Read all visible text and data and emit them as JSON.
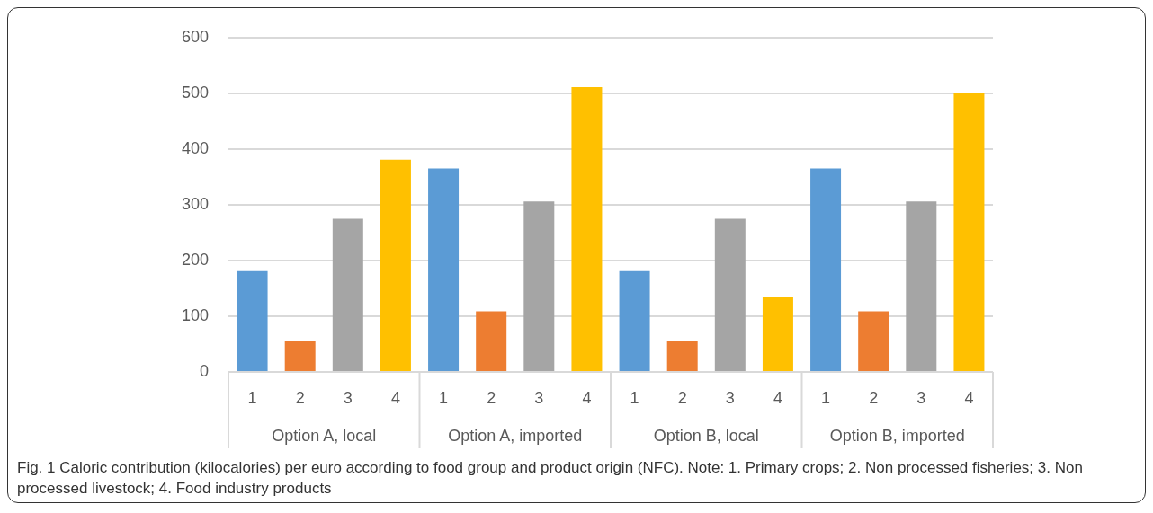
{
  "chart_data": {
    "type": "bar",
    "categories": [
      "Option A, local",
      "Option A, imported",
      "Option B, local",
      "Option B, imported"
    ],
    "series": [
      {
        "name": "1",
        "color": "#5b9bd5",
        "values": [
          181,
          365,
          181,
          365
        ]
      },
      {
        "name": "2",
        "color": "#ed7d31",
        "values": [
          56,
          109,
          56,
          109
        ]
      },
      {
        "name": "3",
        "color": "#a5a5a5",
        "values": [
          275,
          306,
          275,
          306
        ]
      },
      {
        "name": "4",
        "color": "#ffc000",
        "values": [
          381,
          511,
          134,
          500
        ]
      }
    ],
    "ylim": [
      0,
      600
    ],
    "yticks": [
      0,
      100,
      200,
      300,
      400,
      500,
      600
    ],
    "grid": "y",
    "annotations": [
      "Fig. 1  Caloric contribution (kilocalories) per euro according to food group and product origin (NFC). Note: 1. Primary crops; 2. Non processed fisheries; 3. Non processed livestock; 4. Food industry products"
    ]
  }
}
